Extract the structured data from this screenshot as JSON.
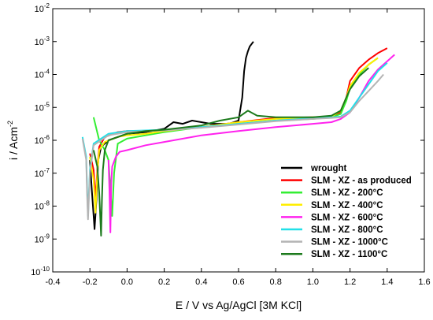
{
  "chart_data": {
    "type": "line",
    "xlabel": "E / V vs Ag/AgCl [3M KCl]",
    "ylabel_main": "i / Acm",
    "ylabel_sup": "-2",
    "xlim": [
      -0.4,
      1.6
    ],
    "ylim_log10": [
      -10,
      -2
    ],
    "yscale": "log",
    "grid": false,
    "legend_position": "bottom-right",
    "x_ticks": [
      "-0.4",
      "-0.2",
      "0.0",
      "0.2",
      "0.4",
      "0.6",
      "0.8",
      "1.0",
      "1.2",
      "1.4",
      "1.6"
    ],
    "y_ticks": [
      {
        "base": "10",
        "exp": "-10"
      },
      {
        "base": "10",
        "exp": "-9"
      },
      {
        "base": "10",
        "exp": "-8"
      },
      {
        "base": "10",
        "exp": "-7"
      },
      {
        "base": "10",
        "exp": "-6"
      },
      {
        "base": "10",
        "exp": "-5"
      },
      {
        "base": "10",
        "exp": "-4"
      },
      {
        "base": "10",
        "exp": "-3"
      },
      {
        "base": "10",
        "exp": "-2"
      }
    ],
    "series": [
      {
        "name": "wrought",
        "color": "#000000",
        "x": [
          -0.2,
          -0.19,
          -0.175,
          -0.165,
          -0.155,
          -0.14,
          -0.1,
          0.0,
          0.1,
          0.2,
          0.25,
          0.3,
          0.35,
          0.4,
          0.45,
          0.5,
          0.55,
          0.6,
          0.62,
          0.63,
          0.64,
          0.65,
          0.66,
          0.68
        ],
        "log_i": [
          -6.6,
          -7.5,
          -8.7,
          -7.8,
          -6.6,
          -6.2,
          -6.0,
          -5.8,
          -5.75,
          -5.65,
          -5.45,
          -5.5,
          -5.4,
          -5.45,
          -5.5,
          -5.5,
          -5.5,
          -5.4,
          -4.7,
          -3.9,
          -3.5,
          -3.3,
          -3.15,
          -3.0
        ]
      },
      {
        "name": "SLM - XZ - as produced",
        "color": "#ff0000",
        "x": [
          -0.2,
          -0.18,
          -0.17,
          -0.16,
          -0.15,
          -0.12,
          -0.05,
          0.0,
          0.1,
          0.2,
          0.4,
          0.6,
          0.8,
          1.0,
          1.1,
          1.15,
          1.18,
          1.2,
          1.25,
          1.3,
          1.35,
          1.4
        ],
        "log_i": [
          -6.4,
          -6.9,
          -7.8,
          -6.9,
          -6.2,
          -5.9,
          -5.75,
          -5.72,
          -5.72,
          -5.7,
          -5.6,
          -5.45,
          -5.32,
          -5.3,
          -5.28,
          -5.15,
          -4.7,
          -4.2,
          -3.8,
          -3.55,
          -3.35,
          -3.2
        ]
      },
      {
        "name": "SLM - XZ - 200°C",
        "color": "#33ee33",
        "x": [
          -0.18,
          -0.15,
          -0.12,
          -0.1,
          -0.08,
          -0.07,
          -0.05,
          0.0,
          0.1,
          0.2,
          0.4,
          0.6,
          0.8,
          1.0,
          1.1,
          1.15,
          1.18,
          1.2,
          1.25,
          1.3,
          1.35
        ],
        "log_i": [
          -5.3,
          -6.0,
          -6.3,
          -6.6,
          -8.3,
          -7.0,
          -6.1,
          -5.95,
          -5.85,
          -5.75,
          -5.6,
          -5.5,
          -5.4,
          -5.35,
          -5.3,
          -5.2,
          -4.8,
          -4.4,
          -4.0,
          -3.7,
          -3.5
        ]
      },
      {
        "name": "SLM - XZ - 400°C",
        "color": "#ffee00",
        "x": [
          -0.2,
          -0.18,
          -0.17,
          -0.16,
          -0.15,
          -0.12,
          -0.05,
          0.0,
          0.1,
          0.2,
          0.4,
          0.6,
          0.8,
          1.0,
          1.1,
          1.15,
          1.18,
          1.2,
          1.25,
          1.3,
          1.35
        ],
        "log_i": [
          -6.5,
          -7.2,
          -8.2,
          -7.0,
          -6.3,
          -6.05,
          -5.9,
          -5.85,
          -5.8,
          -5.72,
          -5.6,
          -5.45,
          -5.35,
          -5.3,
          -5.28,
          -5.1,
          -4.7,
          -4.35,
          -3.95,
          -3.7,
          -3.5
        ]
      },
      {
        "name": "SLM - XZ - 600°C",
        "color": "#ff22ee",
        "x": [
          -0.1,
          -0.095,
          -0.09,
          -0.085,
          -0.08,
          -0.06,
          -0.04,
          0.0,
          0.1,
          0.2,
          0.4,
          0.6,
          0.8,
          1.0,
          1.1,
          1.15,
          1.2,
          1.25,
          1.3,
          1.35,
          1.4,
          1.44
        ],
        "log_i": [
          -6.6,
          -7.5,
          -8.8,
          -7.3,
          -6.8,
          -6.5,
          -6.35,
          -6.3,
          -6.15,
          -6.05,
          -5.85,
          -5.72,
          -5.6,
          -5.5,
          -5.45,
          -5.35,
          -5.15,
          -4.7,
          -4.2,
          -3.85,
          -3.6,
          -3.4
        ]
      },
      {
        "name": "SLM - XZ - 800°C",
        "color": "#22e0e8",
        "x": [
          -0.24,
          -0.22,
          -0.215,
          -0.21,
          -0.2,
          -0.18,
          -0.1,
          0.0,
          0.1,
          0.2,
          0.4,
          0.6,
          0.8,
          1.0,
          1.1,
          1.15,
          1.2,
          1.25,
          1.3,
          1.35,
          1.4
        ],
        "log_i": [
          -5.9,
          -6.5,
          -7.5,
          -8.3,
          -6.9,
          -6.1,
          -5.8,
          -5.72,
          -5.7,
          -5.68,
          -5.6,
          -5.5,
          -5.4,
          -5.33,
          -5.3,
          -5.28,
          -5.1,
          -4.7,
          -4.3,
          -3.9,
          -3.65
        ]
      },
      {
        "name": "SLM - XZ - 1000°C",
        "color": "#b4b4b4",
        "x": [
          -0.24,
          -0.22,
          -0.215,
          -0.21,
          -0.2,
          -0.18,
          -0.1,
          0.0,
          0.1,
          0.2,
          0.4,
          0.6,
          0.8,
          1.0,
          1.1,
          1.15,
          1.2,
          1.25,
          1.3,
          1.35,
          1.38
        ],
        "log_i": [
          -5.95,
          -6.6,
          -7.7,
          -8.4,
          -7.0,
          -6.15,
          -5.85,
          -5.75,
          -5.72,
          -5.7,
          -5.62,
          -5.52,
          -5.42,
          -5.35,
          -5.32,
          -5.3,
          -5.15,
          -4.8,
          -4.5,
          -4.2,
          -4.0
        ]
      },
      {
        "name": "SLM - XZ - 1100°C",
        "color": "#1c7a1c",
        "x": [
          -0.18,
          -0.16,
          -0.15,
          -0.14,
          -0.135,
          -0.13,
          -0.12,
          -0.1,
          0.0,
          0.1,
          0.2,
          0.4,
          0.5,
          0.6,
          0.65,
          0.7,
          0.8,
          1.0,
          1.1,
          1.15,
          1.18,
          1.2,
          1.25,
          1.3
        ],
        "log_i": [
          -6.3,
          -6.8,
          -7.6,
          -8.9,
          -7.8,
          -6.9,
          -6.3,
          -6.0,
          -5.8,
          -5.72,
          -5.68,
          -5.55,
          -5.4,
          -5.3,
          -5.1,
          -5.25,
          -5.3,
          -5.3,
          -5.25,
          -5.1,
          -4.7,
          -4.45,
          -4.05,
          -3.8
        ]
      }
    ]
  }
}
